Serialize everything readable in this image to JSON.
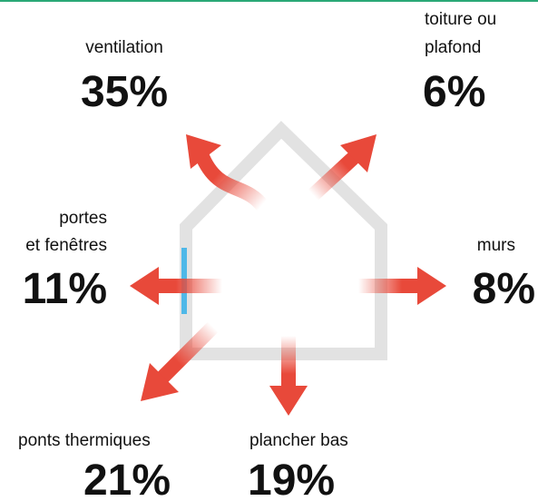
{
  "items": [
    {
      "label": [
        "ventilation"
      ],
      "value": "35%"
    },
    {
      "label": [
        "toiture ou",
        "plafond"
      ],
      "value": "6%"
    },
    {
      "label": [
        "portes",
        "et fenêtres"
      ],
      "value": "11%"
    },
    {
      "label": [
        "murs"
      ],
      "value": "8%"
    },
    {
      "label": [
        "ponts thermiques"
      ],
      "value": "21%"
    },
    {
      "label": [
        "plancher bas"
      ],
      "value": "19%"
    }
  ]
}
